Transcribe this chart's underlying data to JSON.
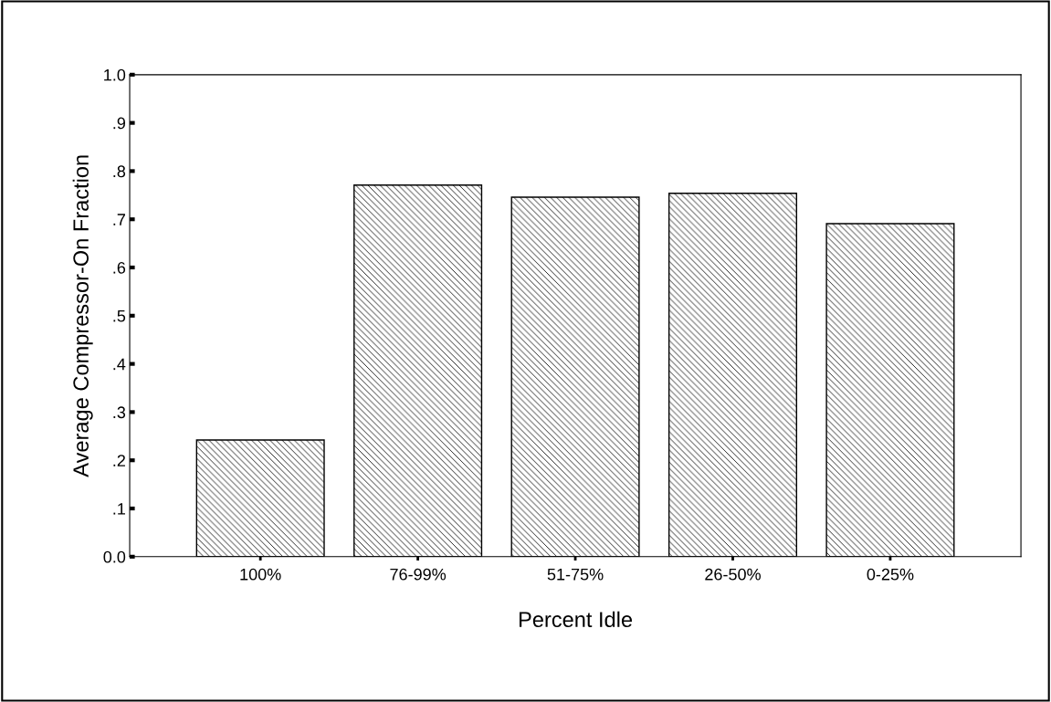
{
  "chart_data": {
    "type": "bar",
    "xlabel": "Percent Idle",
    "ylabel": "Average Compressor-On Fraction",
    "categories": [
      "100%",
      "76-99%",
      "51-75%",
      "26-50%",
      "0-25%"
    ],
    "values": [
      0.242,
      0.771,
      0.746,
      0.754,
      0.691
    ],
    "color": "#000000",
    "ylim": [
      0,
      1.0
    ],
    "yticks": [
      {
        "value": 0,
        "label": "0.0"
      },
      {
        "value": 0.1,
        "label": ".1"
      },
      {
        "value": 0.2,
        "label": ".2"
      },
      {
        "value": 0.3,
        "label": ".3"
      },
      {
        "value": 0.4,
        "label": ".4"
      },
      {
        "value": 0.5,
        "label": ".5"
      },
      {
        "value": 0.6,
        "label": ".6"
      },
      {
        "value": 0.7,
        "label": ".7"
      },
      {
        "value": 0.8,
        "label": ".8"
      },
      {
        "value": 0.9,
        "label": ".9"
      },
      {
        "value": 1.0,
        "label": "1.0"
      }
    ],
    "grid": false
  }
}
